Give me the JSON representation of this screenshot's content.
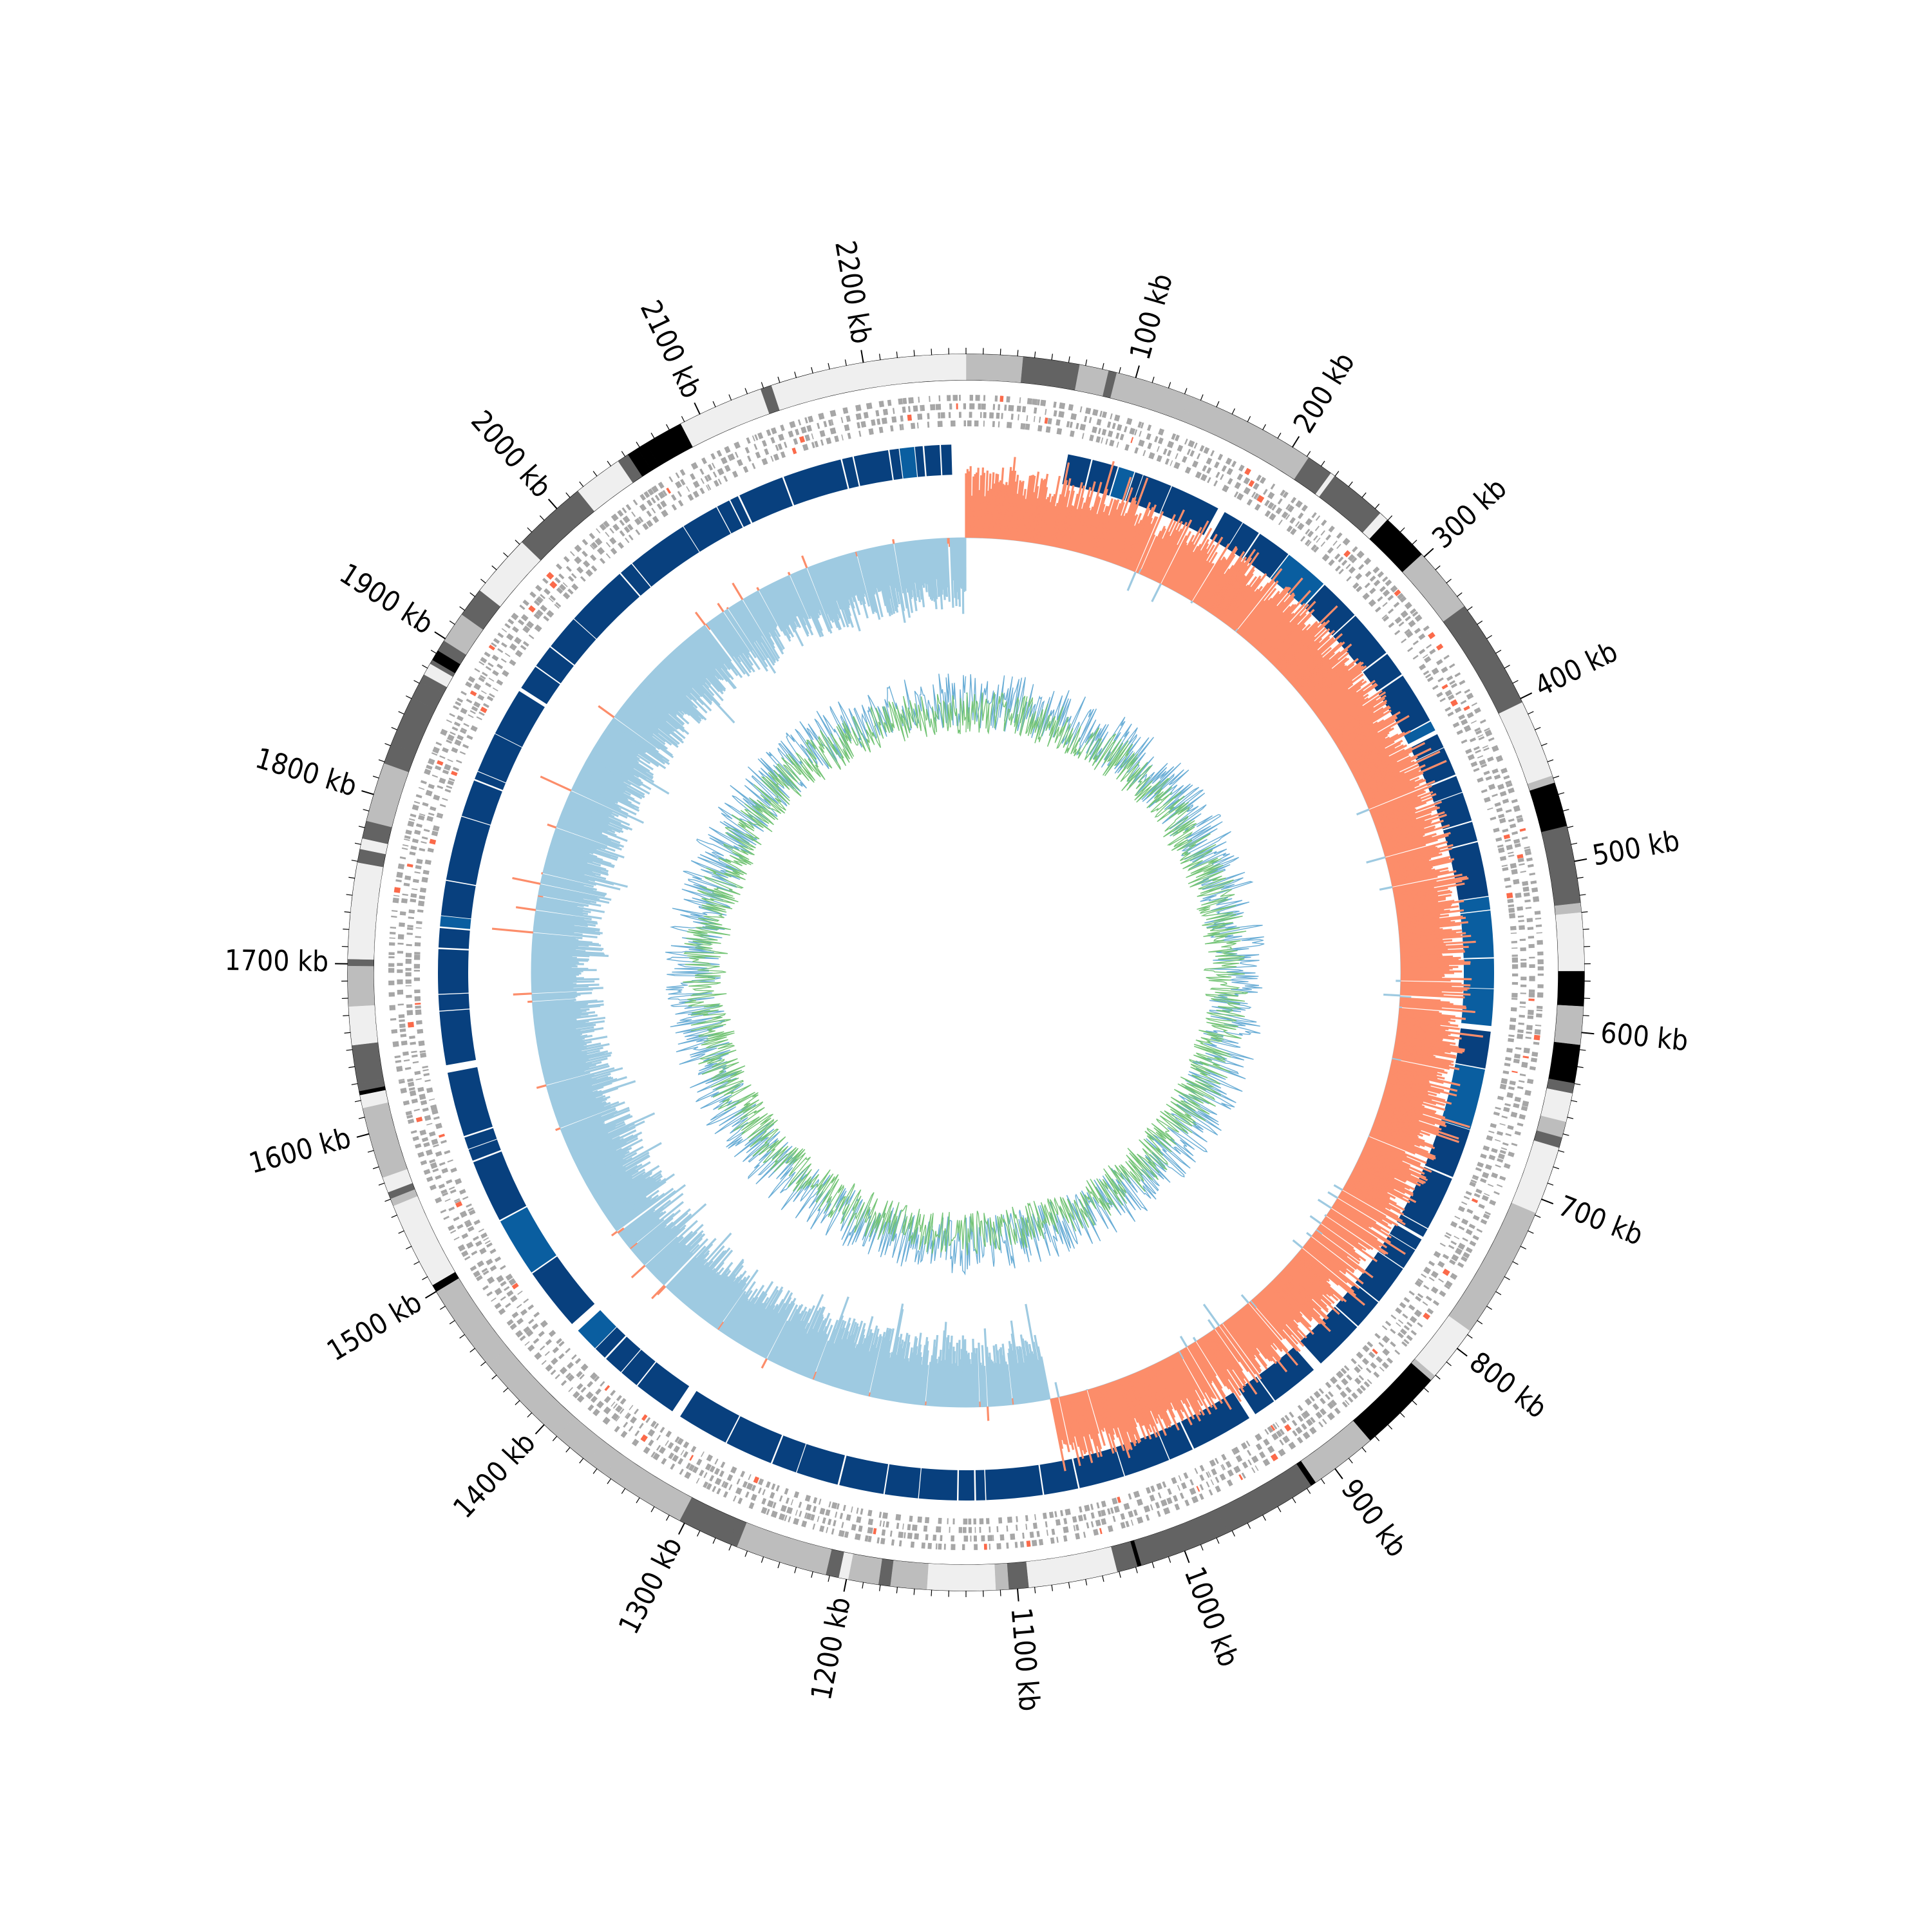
{
  "chart_data": {
    "type": "circular-genome",
    "genome_length_kb": 2260,
    "tick_labels": [
      "100 kb",
      "200 kb",
      "300 kb",
      "400 kb",
      "500 kb",
      "600 kb",
      "700 kb",
      "800 kb",
      "900 kb",
      "1000 kb",
      "1100 kb",
      "1200 kb",
      "1300 kb",
      "1400 kb",
      "1500 kb",
      "1600 kb",
      "1700 kb",
      "1800 kb",
      "1900 kb",
      "2000 kb",
      "2100 kb",
      "2200 kb"
    ],
    "tick_positions_kb": [
      100,
      200,
      300,
      400,
      500,
      600,
      700,
      800,
      900,
      1000,
      1100,
      1200,
      1300,
      1400,
      1500,
      1600,
      1700,
      1800,
      1900,
      2000,
      2100,
      2200
    ],
    "minor_tick_interval_kb": 10,
    "tracks": [
      {
        "name": "ideogram",
        "style": "grayscale bands"
      },
      {
        "name": "genes",
        "style": "gray features, red highlights"
      },
      {
        "name": "blocks",
        "style": "dark blue arcs, gaps at ~0-65 kb and ~1700 kb"
      },
      {
        "name": "gc_skew",
        "style": "bars; positive salmon from ~0 to ~1060 kb, negative light blue elsewhere"
      },
      {
        "name": "gc_content",
        "style": "lines; green and blue"
      }
    ],
    "colors": {
      "ideogram_light": "#efefef",
      "ideogram_mid": "#bdbdbd",
      "ideogram_dark": "#636363",
      "ideogram_black": "#000000",
      "gene": "#a6a6a6",
      "gene_highlight": "#fb6a4a",
      "block": "#08407e",
      "block_alt": "#0a5ea0",
      "skew_positive": "#fc8d6a",
      "skew_negative": "#9ecae1",
      "skew_line": "#6baed6",
      "gc_green": "#74c476",
      "gc_blue": "#6baed6"
    }
  }
}
